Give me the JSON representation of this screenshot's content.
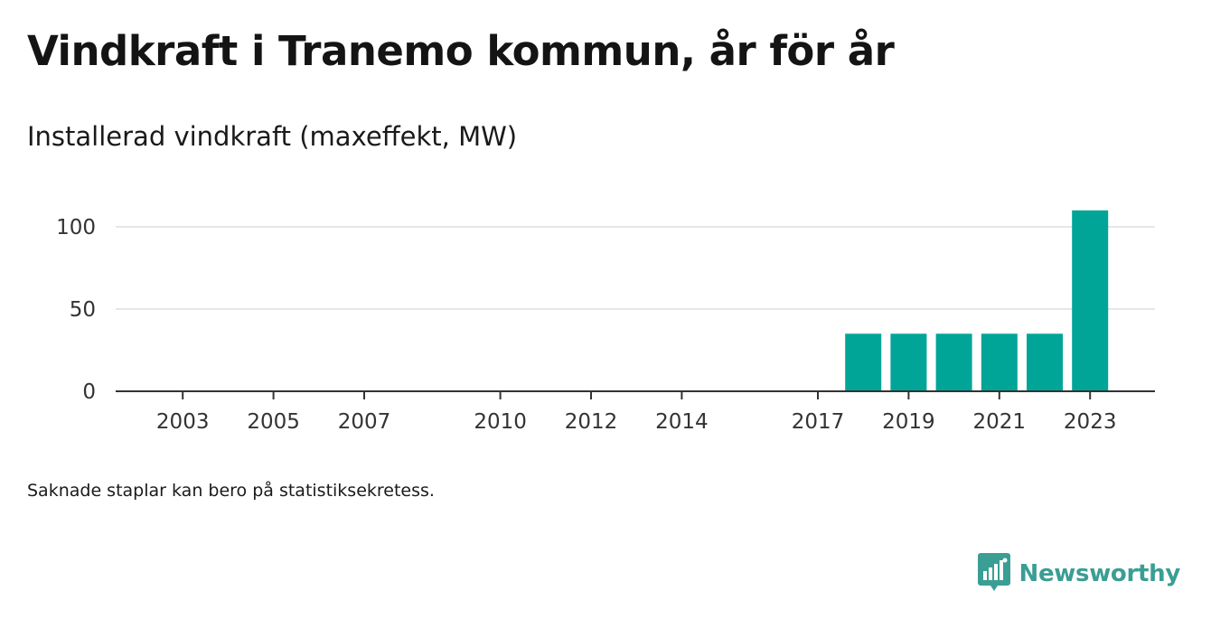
{
  "title": "Vindkraft i Tranemo kommun, år för år",
  "subtitle": "Installerad vindkraft (maxeffekt, MW)",
  "footnote": "Saknade staplar kan bero på statistiksekretess.",
  "brand": {
    "name": "Newsworthy",
    "icon": "newsworthy-logo-icon"
  },
  "colors": {
    "bar": "#00a598",
    "grid": "#dddddd",
    "axis": "#333333",
    "brand": "#3a9e94"
  },
  "chart_data": {
    "type": "bar",
    "title": "Installerad vindkraft (maxeffekt, MW)",
    "xlabel": "",
    "ylabel": "",
    "categories": [
      2002,
      2003,
      2004,
      2005,
      2006,
      2007,
      2008,
      2009,
      2010,
      2011,
      2012,
      2013,
      2014,
      2015,
      2016,
      2017,
      2018,
      2019,
      2020,
      2021,
      2022,
      2023
    ],
    "values": [
      null,
      null,
      null,
      null,
      null,
      null,
      null,
      null,
      null,
      null,
      null,
      null,
      null,
      null,
      null,
      null,
      35,
      35,
      35,
      35,
      35,
      110
    ],
    "xticks": [
      2003,
      2005,
      2007,
      2010,
      2012,
      2014,
      2017,
      2019,
      2021,
      2023
    ],
    "yticks": [
      0,
      50,
      100
    ],
    "ylim": [
      0,
      110
    ],
    "grid": true
  }
}
